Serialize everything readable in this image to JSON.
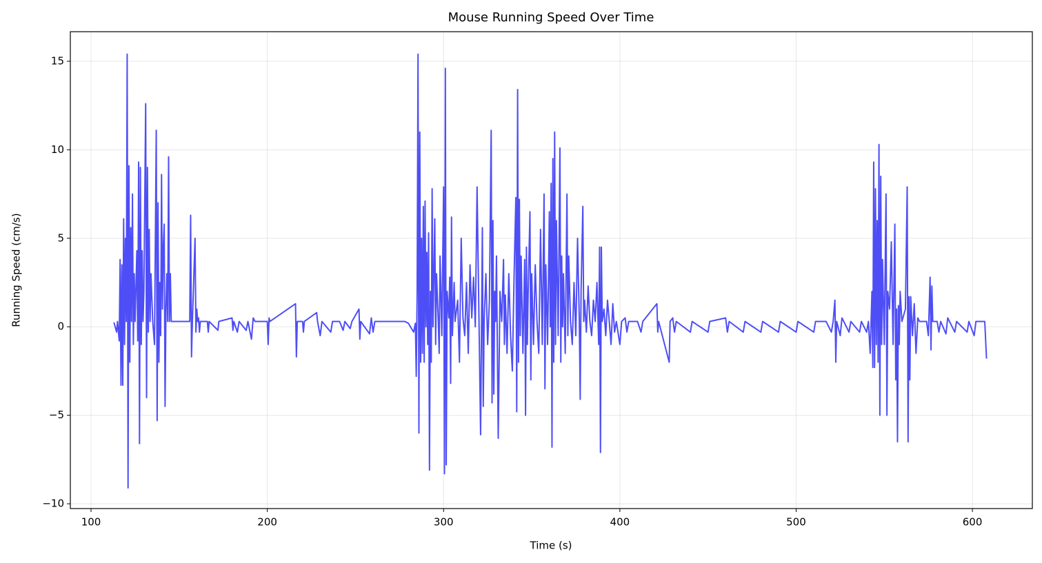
{
  "chart_data": {
    "type": "line",
    "title": "Mouse Running Speed Over Time",
    "xlabel": "Time (s)",
    "ylabel": "Running Speed (cm/s)",
    "color": "#4545f5",
    "grid": true,
    "xlim": [
      88.26,
      634.0
    ],
    "ylim": [
      -10.27,
      16.67
    ],
    "xticks": [
      100,
      200,
      300,
      400,
      500,
      600
    ],
    "yticks": [
      {
        "value": -10,
        "label": "−10"
      },
      {
        "value": -5,
        "label": "−5"
      },
      0,
      5,
      10,
      15
    ],
    "x": [
      113,
      114.5,
      115,
      116,
      116.5,
      117,
      117.5,
      118,
      118.5,
      119,
      119.5,
      120,
      120.5,
      121,
      121.5,
      122,
      122.5,
      123,
      123.5,
      124,
      124.5,
      125,
      126,
      126.5,
      127,
      127.5,
      128,
      128.5,
      129,
      129.5,
      130,
      131,
      131.5,
      132,
      132.5,
      133,
      133.5,
      134,
      135,
      136,
      137,
      137.5,
      138,
      138.5,
      139,
      139.5,
      140,
      140.5,
      141,
      141.5,
      142,
      142.5,
      143,
      143.5,
      144,
      144.5,
      145,
      145.5,
      156,
      156.5,
      157,
      157.5,
      159,
      159.5,
      160,
      160.5,
      161,
      161.5,
      162,
      166,
      166.5,
      167,
      172,
      172.5,
      180,
      180.5,
      181,
      183,
      184,
      188,
      189,
      191,
      192,
      193,
      200,
      200.5,
      201,
      201.5,
      216,
      216.5,
      217,
      220,
      220.5,
      221,
      228,
      228.5,
      230,
      231,
      236,
      237,
      241,
      243,
      244,
      247,
      248,
      252,
      252.5,
      253,
      258,
      259,
      260,
      261,
      278,
      280,
      283,
      284,
      284.5,
      285,
      285.5,
      286,
      286.5,
      287,
      287.5,
      288,
      288.5,
      289,
      289.5,
      290,
      290.5,
      291,
      291.5,
      292,
      292.5,
      293,
      293.5,
      294,
      295,
      295.5,
      296,
      297,
      297.5,
      298,
      299,
      300,
      300.5,
      301,
      301.5,
      302,
      303,
      303.5,
      304,
      304.5,
      305,
      306,
      306.5,
      308,
      309,
      310,
      311,
      312,
      313,
      314,
      315,
      316,
      317,
      318,
      319,
      320,
      321,
      322,
      322.5,
      323,
      324,
      325,
      326,
      327,
      327.5,
      328,
      328.5,
      329,
      329.5,
      330,
      331,
      332,
      333,
      334,
      334.5,
      335,
      336,
      337,
      338,
      339,
      340,
      341,
      341.5,
      342,
      342.5,
      343,
      343.5,
      344,
      345,
      346,
      346.5,
      347,
      347.5,
      348,
      349,
      349.5,
      350,
      351,
      352,
      353,
      354,
      355,
      356,
      357,
      357.5,
      358,
      359,
      360,
      360.5,
      361,
      361.5,
      362,
      362.5,
      363,
      363.5,
      364,
      365,
      366,
      366.5,
      367,
      367.5,
      368,
      369,
      370,
      370.5,
      371,
      372,
      373,
      374,
      375,
      376,
      377,
      377.5,
      378,
      379,
      379.5,
      380,
      381,
      382,
      383,
      384,
      385,
      386,
      387,
      388,
      388.5,
      389,
      389.5,
      390,
      391,
      392,
      393,
      394,
      395,
      396,
      397,
      398,
      400,
      401,
      403,
      404,
      405,
      410,
      412,
      413,
      421,
      421.5,
      422,
      428,
      428.5,
      430,
      431,
      432,
      440,
      441,
      450,
      451,
      460,
      461,
      462,
      470,
      471,
      480,
      481,
      490,
      491,
      500,
      501,
      510,
      511,
      517,
      520,
      521,
      522,
      522.5,
      523,
      525,
      526,
      530,
      531,
      536,
      537,
      540,
      541,
      542,
      543,
      543.5,
      544,
      544.5,
      545,
      545.5,
      546,
      546.5,
      547,
      547.5,
      548,
      548.5,
      549,
      550,
      551,
      551.5,
      552,
      553,
      554,
      555,
      556,
      556.5,
      557,
      557.5,
      558,
      558.5,
      559,
      560,
      562,
      563,
      563.5,
      564,
      564.5,
      565,
      566,
      567,
      568,
      569,
      570,
      574,
      575,
      576,
      576.5,
      577,
      577.5,
      580,
      581,
      582,
      585,
      586,
      587,
      590,
      591,
      597,
      598,
      601,
      602,
      607,
      608
    ],
    "values": [
      0.25,
      -0.3,
      0.3,
      -0.8,
      3.8,
      -3.3,
      3.5,
      -3.3,
      6.1,
      -1,
      5,
      0.3,
      15.4,
      -9.1,
      9.1,
      -2,
      5.6,
      0.3,
      7.5,
      -1,
      3,
      0.3,
      4.3,
      -0.8,
      9.3,
      -6.6,
      9,
      -1,
      4.3,
      0.3,
      2,
      12.6,
      -4,
      9,
      -0.3,
      5.5,
      0.3,
      3,
      0.3,
      -1,
      11.1,
      -5.3,
      7,
      -2,
      2.5,
      -0.5,
      8.6,
      1,
      4.5,
      5.8,
      -4.5,
      1,
      3,
      0.3,
      9.6,
      0.3,
      3,
      0.3,
      0.3,
      6.3,
      -1.7,
      0.3,
      5,
      -0.3,
      1,
      0.3,
      0.5,
      -0.3,
      0.3,
      0.3,
      -0.3,
      0.3,
      -0.2,
      0.3,
      0.5,
      -0.2,
      0.3,
      -0.3,
      0.3,
      -0.2,
      0.3,
      -0.7,
      0.5,
      0.3,
      0.3,
      -1,
      0.5,
      0.3,
      1.3,
      -1.7,
      0.3,
      0.3,
      -0.3,
      0.3,
      0.8,
      0.3,
      -0.5,
      0.3,
      -0.3,
      0.3,
      0.3,
      -0.2,
      0.3,
      -0.1,
      0.3,
      1,
      -0.7,
      0.3,
      -0.4,
      0.5,
      -0.3,
      0.3,
      0.3,
      0.2,
      -0.3,
      0.2,
      -2.8,
      2,
      15.4,
      -6,
      11,
      -2,
      5,
      -1.5,
      6.8,
      -2,
      7.1,
      0,
      4.2,
      -1,
      5.3,
      -8.1,
      2,
      -2,
      7.8,
      0,
      6.1,
      -1,
      3,
      0.3,
      -1.5,
      4,
      -0.5,
      7.9,
      -8.3,
      14.6,
      -7.8,
      2,
      0.5,
      2.8,
      -3.2,
      6.2,
      -0.5,
      2.5,
      0.3,
      1.5,
      -2,
      5,
      0.5,
      -0.5,
      2.5,
      -1.5,
      3.5,
      0.5,
      2.8,
      0,
      7.9,
      1,
      -6.1,
      5.6,
      -4.5,
      0.3,
      3,
      -1,
      1.5,
      11.1,
      -4.3,
      6,
      -3.8,
      2,
      0.3,
      4,
      -6.3,
      2,
      0.3,
      3.8,
      -1,
      1.8,
      -1.5,
      3,
      -0.5,
      -2.5,
      2.9,
      7.3,
      -4.8,
      13.4,
      -2,
      7.2,
      -0.5,
      4,
      -1.5,
      3.8,
      -5,
      4.5,
      -1,
      2,
      6.5,
      -3,
      3,
      -1,
      3.5,
      0.3,
      -1.5,
      5.5,
      -1,
      7.5,
      -3.5,
      3.5,
      -1,
      6.5,
      0,
      8.1,
      -6.8,
      9.5,
      -2,
      11,
      -1,
      6,
      -0.5,
      10.1,
      -2,
      4,
      0,
      3,
      -1.5,
      7.5,
      -0.5,
      4,
      0.3,
      -1,
      2.5,
      -0.5,
      5,
      0.3,
      -4.1,
      2,
      6.8,
      0.3,
      1.5,
      -0.3,
      2.3,
      0.3,
      -0.5,
      1.5,
      0.3,
      2.5,
      -1,
      4.5,
      -7.1,
      4.5,
      0.3,
      1,
      -0.5,
      1.5,
      0.3,
      -1,
      1.3,
      -0.3,
      0.3,
      -1,
      0.3,
      0.5,
      -0.3,
      0.3,
      0.3,
      -0.3,
      0.3,
      1.3,
      -0.3,
      0.3,
      -2,
      0.3,
      0.5,
      -0.3,
      0.3,
      -0.3,
      0.3,
      -0.3,
      0.3,
      0.5,
      -0.3,
      0.3,
      -0.3,
      0.3,
      -0.3,
      0.3,
      -0.3,
      0.3,
      -0.3,
      0.3,
      -0.3,
      0.3,
      0.3,
      -0.3,
      0.3,
      1.5,
      -2,
      0.3,
      -0.5,
      0.5,
      -0.3,
      0.3,
      -0.3,
      0.3,
      -0.3,
      0.3,
      -1.5,
      2,
      -2.3,
      9.3,
      -2.3,
      7.8,
      -1,
      6,
      -2,
      10.3,
      -5,
      8.5,
      -1,
      3.8,
      -1,
      7.5,
      -5,
      2,
      1,
      4.8,
      -1,
      5.8,
      -3,
      1,
      -6.5,
      1.2,
      -1,
      2,
      0.3,
      1,
      7.9,
      -6.5,
      1.7,
      -3,
      1.7,
      -0.5,
      1.3,
      -1.5,
      0.5,
      0.3,
      0.3,
      -0.5,
      2.8,
      -1.3,
      2.3,
      0.3,
      0.3,
      -0.3,
      0.3,
      -0.4,
      0.5,
      0.3,
      -0.3,
      0.3,
      -0.3,
      0.3,
      -0.5,
      0.3,
      0.3,
      -1.8
    ]
  }
}
